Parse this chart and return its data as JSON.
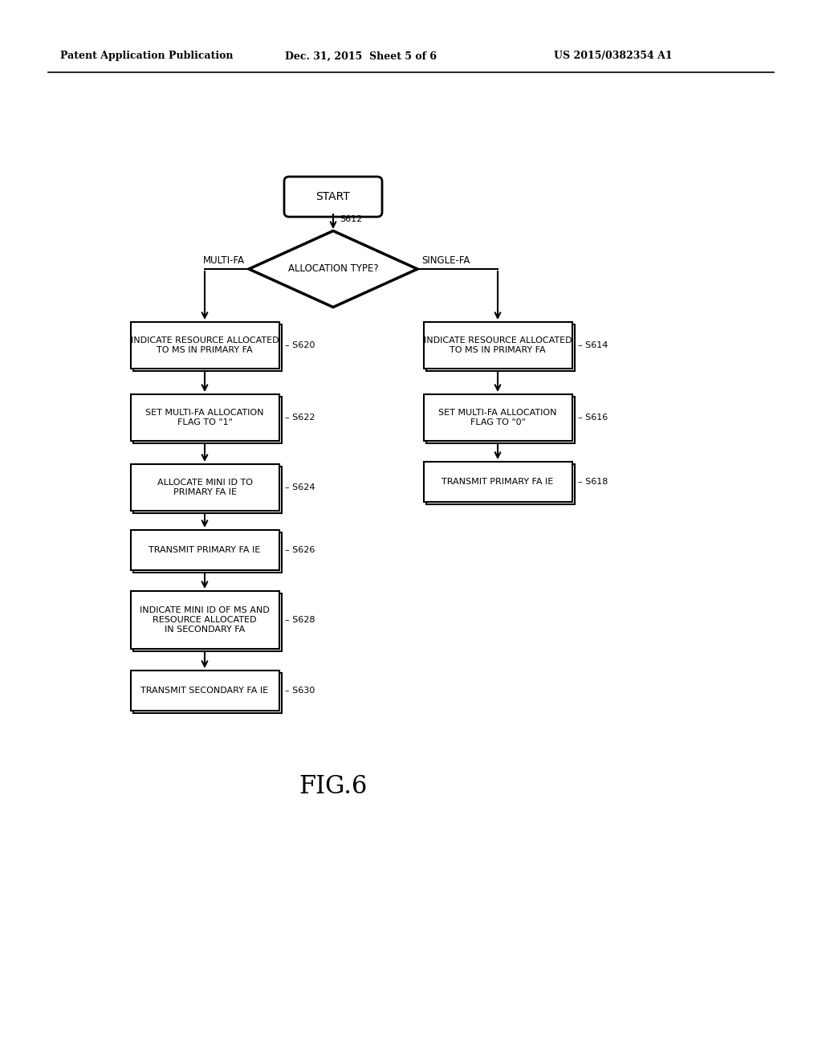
{
  "bg_color": "#ffffff",
  "header_left": "Patent Application Publication",
  "header_mid": "Dec. 31, 2015  Sheet 5 of 6",
  "header_right": "US 2015/0382354 A1",
  "fig_label": "FIG.6",
  "start_label": "START",
  "diamond_label": "ALLOCATION TYPE?",
  "diamond_step": "S612",
  "diamond_left_label": "MULTI-FA",
  "diamond_right_label": "SINGLE-FA",
  "left_boxes": [
    {
      "label": "INDICATE RESOURCE ALLOCATED\nTO MS IN PRIMARY FA",
      "step": "S620"
    },
    {
      "label": "SET MULTI-FA ALLOCATION\nFLAG TO \"1\"",
      "step": "S622"
    },
    {
      "label": "ALLOCATE MINI ID TO\nPRIMARY FA IE",
      "step": "S624"
    },
    {
      "label": "TRANSMIT PRIMARY FA IE",
      "step": "S626"
    },
    {
      "label": "INDICATE MINI ID OF MS AND\nRESOURCE ALLOCATED\nIN SECONDARY FA",
      "step": "S628"
    },
    {
      "label": "TRANSMIT SECONDARY FA IE",
      "step": "S630"
    }
  ],
  "right_boxes": [
    {
      "label": "INDICATE RESOURCE ALLOCATED\nTO MS IN PRIMARY FA",
      "step": "S614"
    },
    {
      "label": "SET MULTI-FA ALLOCATION\nFLAG TO \"0\"",
      "step": "S616"
    },
    {
      "label": "TRANSMIT PRIMARY FA IE",
      "step": "S618"
    }
  ]
}
